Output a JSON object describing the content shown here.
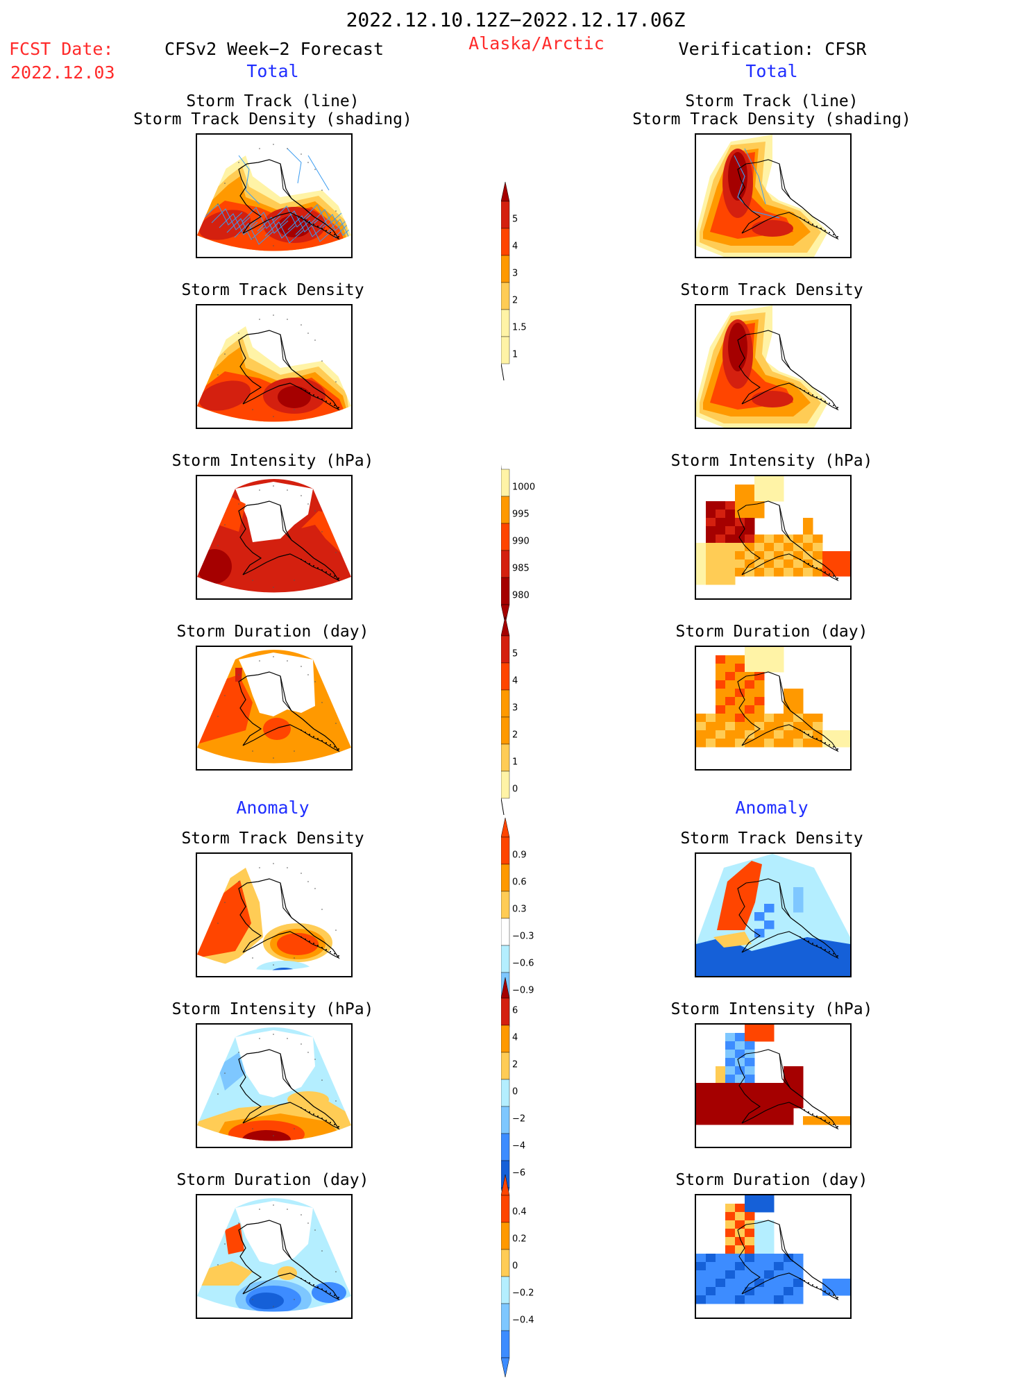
{
  "header": {
    "period": "2022.12.10.12Z−2022.12.17.06Z",
    "fcst_label": "FCST Date:",
    "fcst_date": "2022.12.03",
    "forecast_title": "CFSv2 Week−2 Forecast",
    "region": "Alaska/Arctic",
    "verification_title": "Verification: CFSR",
    "total_left": "Total",
    "total_right": "Total",
    "anomaly_left": "Anomaly",
    "anomaly_right": "Anomaly"
  },
  "panels": {
    "p1_title_a": "Storm Track (line)",
    "p1_title_b": "Storm Track Density (shading)",
    "p2_title": "Storm Track Density",
    "p3_title": "Storm Intensity (hPa)",
    "p4_title": "Storm Duration (day)",
    "p5_title": "Storm Track Density",
    "p6_title": "Storm Intensity (hPa)",
    "p7_title": "Storm Duration (day)"
  },
  "colorbars": {
    "density_total": [
      "5",
      "4",
      "3",
      "2",
      "1.5",
      "1"
    ],
    "intensity_total": [
      "1000",
      "995",
      "990",
      "985",
      "980"
    ],
    "duration_total": [
      "5",
      "4",
      "3",
      "2",
      "1",
      "0"
    ],
    "density_anom": [
      "0.9",
      "0.6",
      "0.3",
      "−0.3",
      "−0.6",
      "−0.9"
    ],
    "intensity_anom": [
      "6",
      "4",
      "2",
      "0",
      "−2",
      "−4",
      "−6"
    ],
    "duration_anom": [
      "0.4",
      "0.2",
      "0",
      "−0.2",
      "−0.4"
    ]
  },
  "colors": {
    "darkred": "#a50000",
    "red": "#d4200f",
    "redorange": "#ff4500",
    "orange": "#ff9900",
    "lightorange": "#ffcc55",
    "yellow": "#fff3a6",
    "lightblue": "#b4eeff",
    "midblue": "#7ec7ff",
    "blue": "#3d8cff",
    "darkblue": "#1560d8",
    "track": "#3a9bf0"
  }
}
